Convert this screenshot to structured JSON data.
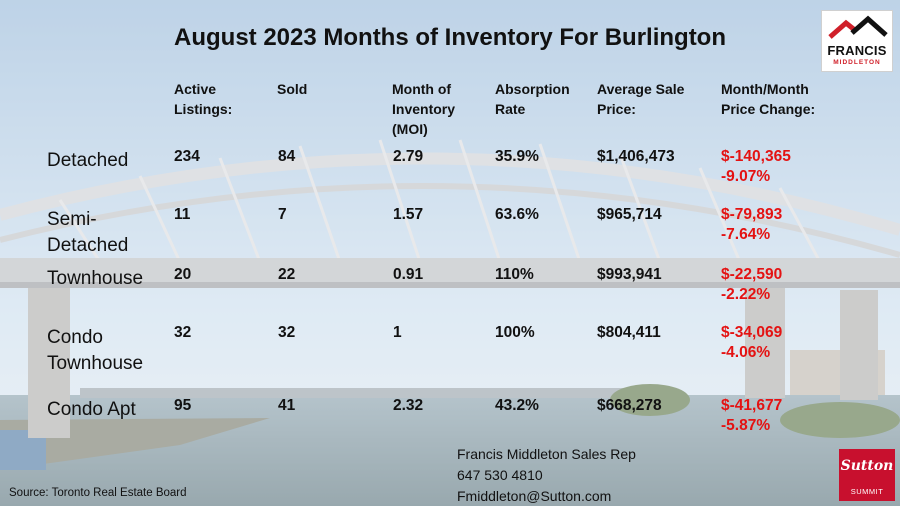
{
  "title": "August 2023 Months of Inventory For Burlington",
  "headers": {
    "active": "Active\nListings:",
    "sold": "Sold",
    "moi": "Month of\nInventory\n(MOI)",
    "absorption": "Absorption\nRate",
    "avg_price": "Average Sale\nPrice:",
    "change": "Month/Month\nPrice Change:"
  },
  "rows": [
    {
      "label": "Detached",
      "active": "234",
      "sold": "84",
      "moi": "2.79",
      "absorption": "35.9%",
      "avg_price": "$1,406,473",
      "change_amount": "$-140,365",
      "change_pct": "-9.07%"
    },
    {
      "label": "Semi-\nDetached",
      "active": "11",
      "sold": "7",
      "moi": "1.57",
      "absorption": "63.6%",
      "avg_price": "$965,714",
      "change_amount": "$-79,893",
      "change_pct": "-7.64%"
    },
    {
      "label": "Townhouse",
      "active": "20",
      "sold": "22",
      "moi": "0.91",
      "absorption": "110%",
      "avg_price": "$993,941",
      "change_amount": "$-22,590",
      "change_pct": "-2.22%"
    },
    {
      "label": "Condo\nTownhouse",
      "active": "32",
      "sold": "32",
      "moi": "1",
      "absorption": "100%",
      "avg_price": "$804,411",
      "change_amount": "$-34,069",
      "change_pct": "-4.06%"
    },
    {
      "label": "Condo Apt",
      "active": "95",
      "sold": "41",
      "moi": "2.32",
      "absorption": "43.2%",
      "avg_price": "$668,278",
      "change_amount": "$-41,677",
      "change_pct": "-5.87%"
    }
  ],
  "source": "Source: Toronto Real Estate Board",
  "contact": {
    "name": "Francis Middleton Sales Rep",
    "phone": "647 530 4810",
    "email": "Fmiddleton@Sutton.com"
  },
  "logos": {
    "francis": {
      "word": "FRANCIS",
      "sub": "MIDDLETON"
    },
    "sutton": {
      "word": "Sutton",
      "sub": "SUMMIT"
    }
  },
  "colors": {
    "negative": "#e41212",
    "logo_red": "#d0202a",
    "sutton_red": "#c8102e"
  }
}
